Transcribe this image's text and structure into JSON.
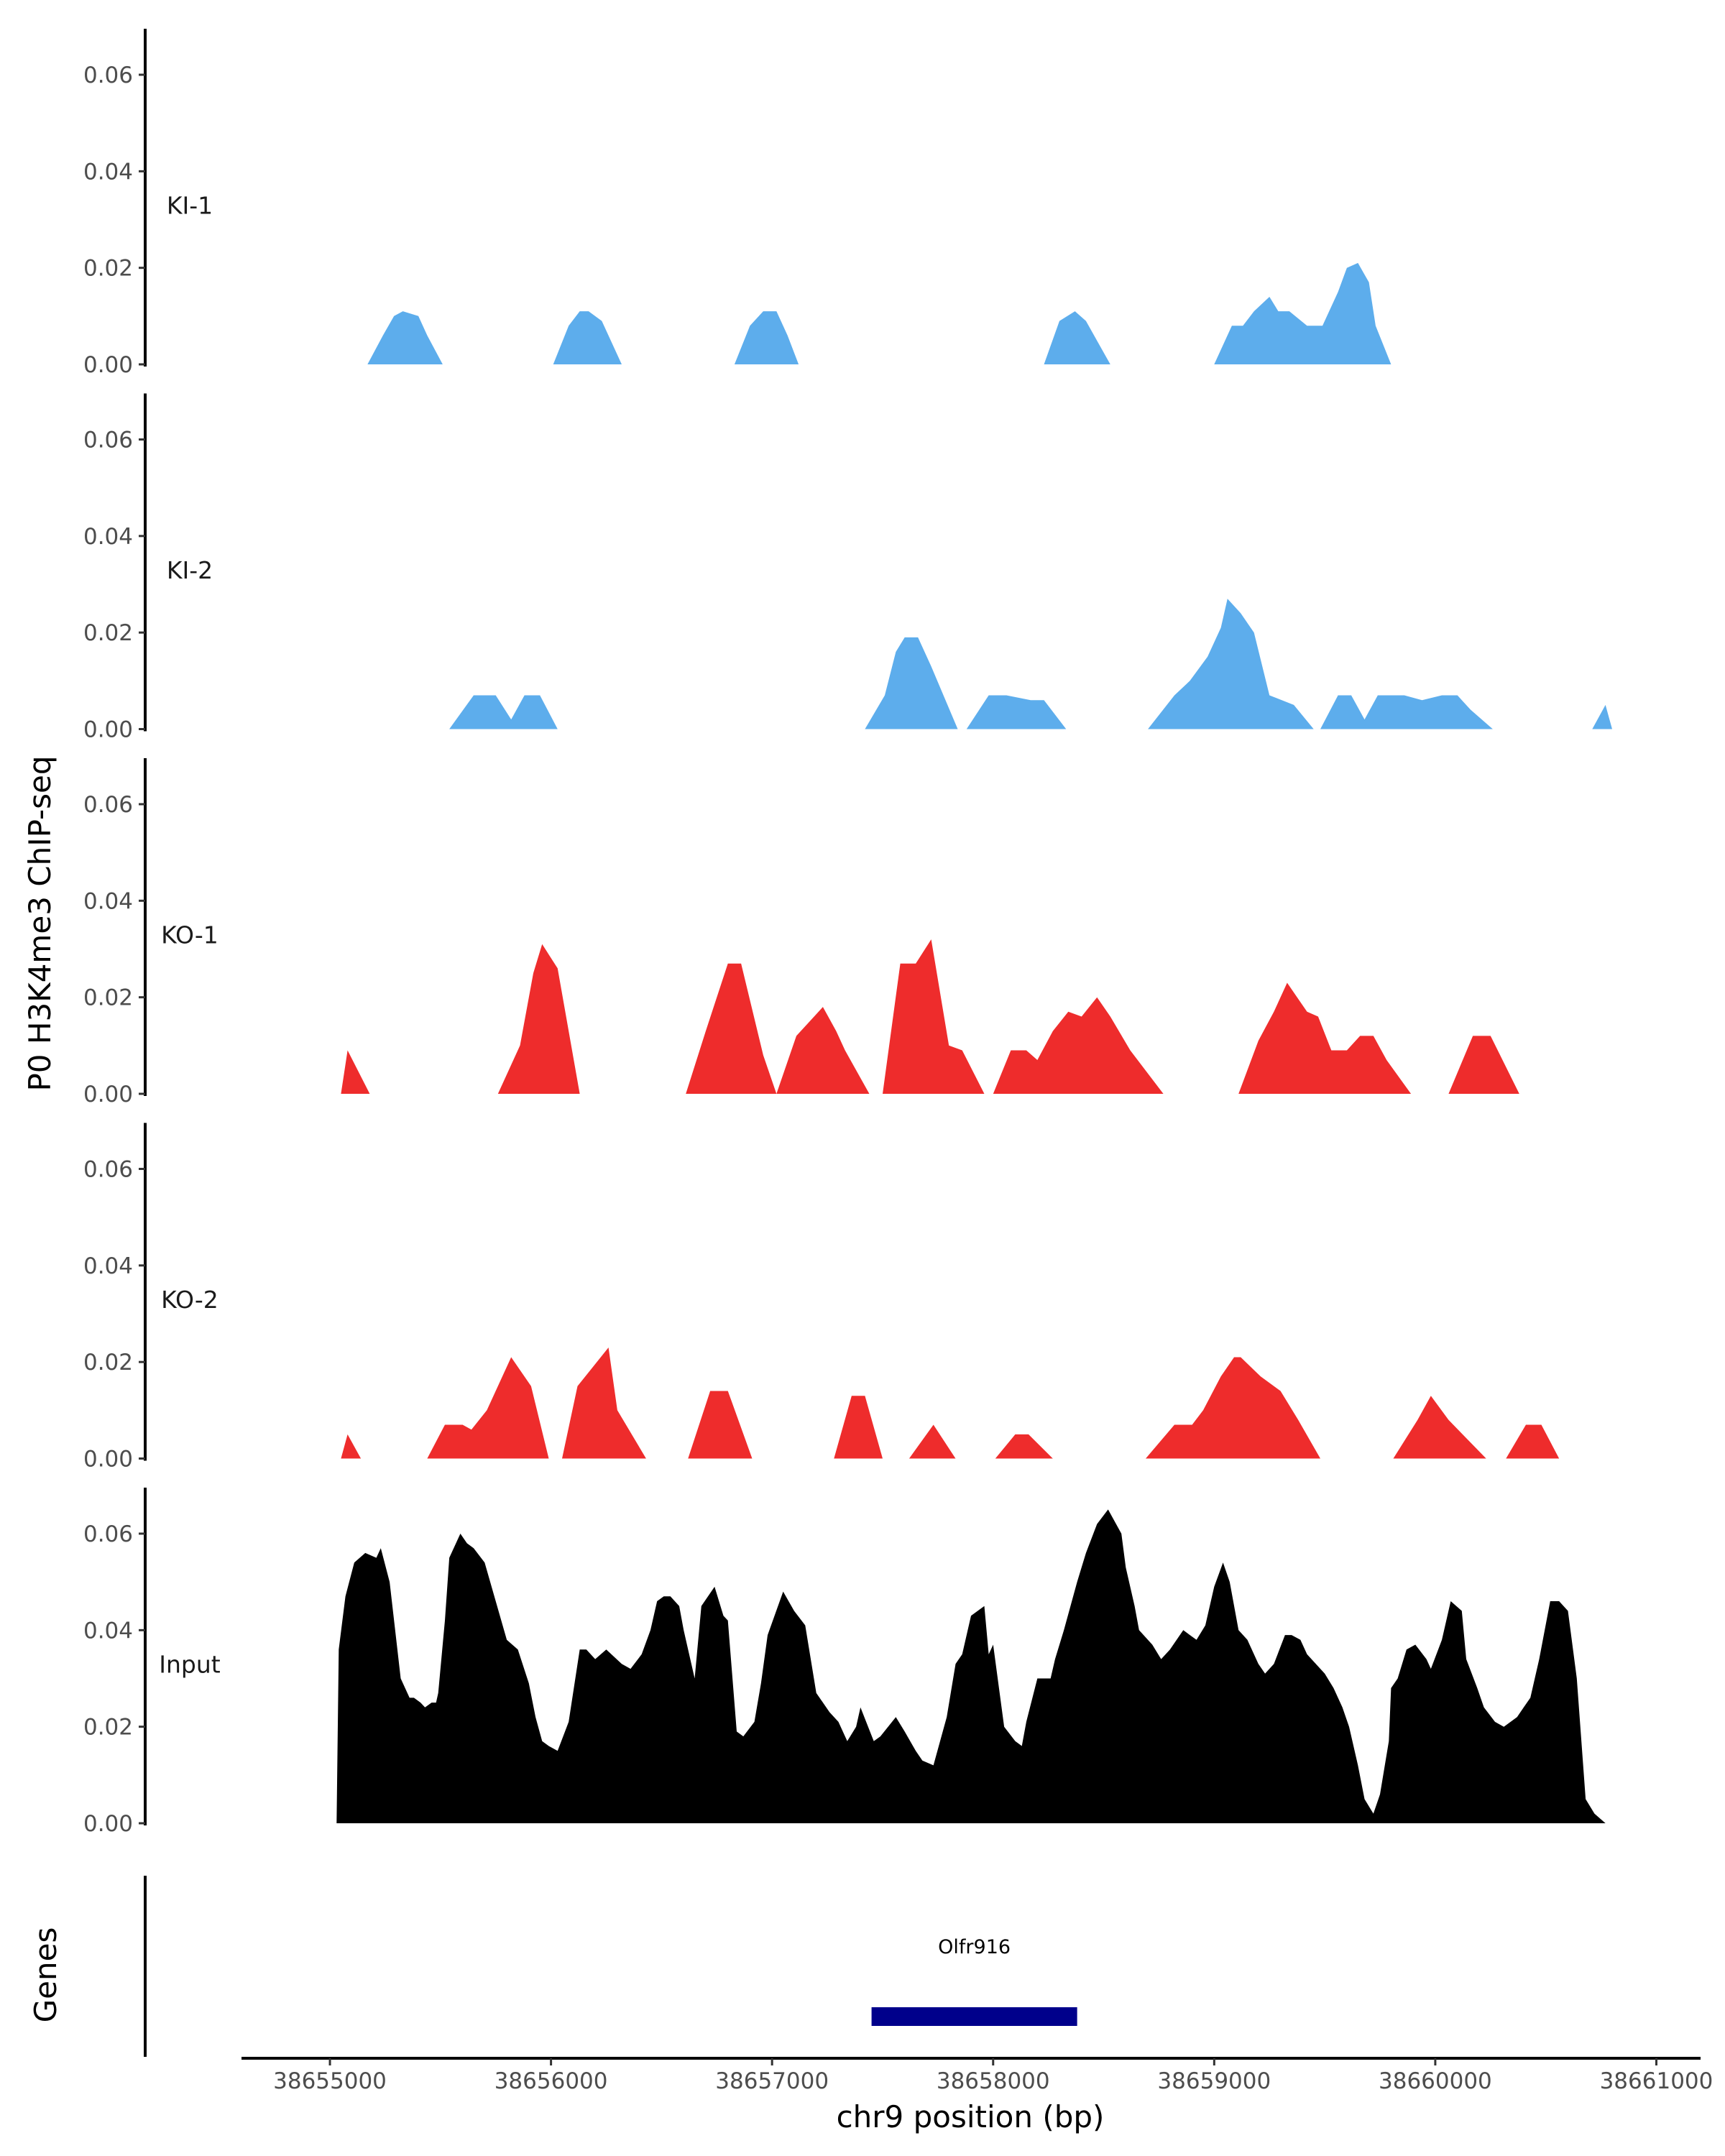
{
  "chart_data": {
    "type": "area",
    "ylabel": "P0 H3K4me3 ChIP-seq",
    "xlabel": "chr9 position (bp)",
    "genes_label": "Genes",
    "xlim": [
      38654600,
      38661200
    ],
    "ylim": [
      0,
      0.068
    ],
    "x_ticks": [
      38655000,
      38656000,
      38657000,
      38658000,
      38659000,
      38660000,
      38661000
    ],
    "x_tick_labels": [
      "38655000",
      "38656000",
      "38657000",
      "38658000",
      "38659000",
      "38660000",
      "38661000"
    ],
    "y_ticks": [
      0,
      0.02,
      0.04,
      0.06
    ],
    "y_tick_labels": [
      "0.00",
      "0.02",
      "0.04",
      "0.06"
    ],
    "colors": {
      "KI": "#5DADEC",
      "KO": "#EE2C2C",
      "Input": "#000000",
      "gene": "#00008B"
    },
    "tracks": [
      {
        "name": "KI-1",
        "color": "#5DADEC",
        "x": [
          38655170,
          38655240,
          38655290,
          38655330,
          38655400,
          38655440,
          38655510,
          38656010,
          38656080,
          38656130,
          38656170,
          38656230,
          38656320,
          38656830,
          38656900,
          38656960,
          38657020,
          38657070,
          38657120,
          38658230,
          38658300,
          38658370,
          38658420,
          38658530,
          38659000,
          38659080,
          38659130,
          38659180,
          38659250,
          38659290,
          38659340,
          38659420,
          38659490,
          38659560,
          38659600,
          38659650,
          38659700,
          38659730,
          38659800
        ],
        "y": [
          0,
          0.006,
          0.01,
          0.011,
          0.01,
          0.006,
          0,
          0,
          0.008,
          0.011,
          0.011,
          0.009,
          0,
          0,
          0.008,
          0.011,
          0.011,
          0.006,
          0,
          0,
          0.009,
          0.011,
          0.009,
          0,
          0,
          0.008,
          0.008,
          0.011,
          0.014,
          0.011,
          0.011,
          0.008,
          0.008,
          0.015,
          0.02,
          0.021,
          0.017,
          0.008,
          0
        ]
      },
      {
        "name": "KI-2",
        "color": "#5DADEC",
        "x": [
          38655540,
          38655650,
          38655750,
          38655820,
          38655880,
          38655950,
          38656030,
          38656130,
          38657420,
          38657510,
          38657560,
          38657600,
          38657660,
          38657720,
          38657840,
          38657880,
          38657980,
          38658060,
          38658170,
          38658230,
          38658330,
          38658700,
          38658820,
          38658890,
          38658970,
          38659030,
          38659060,
          38659120,
          38659180,
          38659250,
          38659360,
          38659450,
          38659480,
          38659560,
          38659620,
          38659680,
          38659740,
          38659860,
          38659940,
          38660030,
          38660100,
          38660160,
          38660260,
          38660710,
          38660770,
          38660800
        ],
        "y": [
          0,
          0.007,
          0.007,
          0.002,
          0.007,
          0.007,
          0,
          0,
          0,
          0.007,
          0.016,
          0.019,
          0.019,
          0.013,
          0,
          0,
          0.007,
          0.007,
          0.006,
          0.006,
          0,
          0,
          0.007,
          0.01,
          0.015,
          0.021,
          0.027,
          0.024,
          0.02,
          0.007,
          0.005,
          0,
          0,
          0.007,
          0.007,
          0.002,
          0.007,
          0.007,
          0.006,
          0.007,
          0.007,
          0.004,
          0,
          0,
          0.005,
          0
        ]
      },
      {
        "name": "KO-1",
        "color": "#EE2C2C",
        "x": [
          38655050,
          38655080,
          38655180,
          38655760,
          38655860,
          38655920,
          38655960,
          38656030,
          38656130,
          38656610,
          38656700,
          38656800,
          38656860,
          38656960,
          38657020,
          38657110,
          38657170,
          38657230,
          38657290,
          38657330,
          38657440,
          38657500,
          38657580,
          38657650,
          38657720,
          38657800,
          38657860,
          38657960,
          38658000,
          38658080,
          38658150,
          38658200,
          38658270,
          38658340,
          38658400,
          38658470,
          38658530,
          38658620,
          38658770,
          38659110,
          38659200,
          38659270,
          38659330,
          38659420,
          38659470,
          38659530,
          38659600,
          38659660,
          38659720,
          38659780,
          38659890,
          38660060,
          38660170,
          38660250,
          38660380
        ],
        "y": [
          0,
          0.009,
          0,
          0,
          0.01,
          0.025,
          0.031,
          0.026,
          0,
          0,
          0.013,
          0.027,
          0.027,
          0.008,
          0,
          0.012,
          0.015,
          0.018,
          0.013,
          0.009,
          0,
          0,
          0.027,
          0.027,
          0.032,
          0.01,
          0.009,
          0,
          0,
          0.009,
          0.009,
          0.007,
          0.013,
          0.017,
          0.016,
          0.02,
          0.016,
          0.009,
          0,
          0,
          0.011,
          0.017,
          0.023,
          0.017,
          0.016,
          0.009,
          0.009,
          0.012,
          0.012,
          0.007,
          0,
          0,
          0.012,
          0.012,
          0
        ]
      },
      {
        "name": "KO-2",
        "color": "#EE2C2C",
        "x": [
          38655050,
          38655080,
          38655140,
          38655440,
          38655520,
          38655600,
          38655640,
          38655710,
          38655820,
          38655910,
          38655990,
          38656050,
          38656120,
          38656260,
          38656300,
          38656430,
          38656620,
          38656720,
          38656800,
          38656910,
          38657280,
          38657360,
          38657420,
          38657500,
          38657620,
          38657730,
          38657830,
          38658010,
          38658100,
          38658160,
          38658270,
          38658690,
          38658820,
          38658900,
          38658950,
          38659030,
          38659090,
          38659120,
          38659210,
          38659300,
          38659380,
          38659480,
          38659810,
          38659920,
          38659980,
          38660060,
          38660230,
          38660320,
          38660410,
          38660480,
          38660560
        ],
        "y": [
          0,
          0.005,
          0,
          0,
          0.007,
          0.007,
          0.006,
          0.01,
          0.021,
          0.015,
          0,
          0,
          0.015,
          0.023,
          0.01,
          0,
          0,
          0.014,
          0.014,
          0,
          0,
          0.013,
          0.013,
          0,
          0,
          0.007,
          0,
          0,
          0.005,
          0.005,
          0,
          0,
          0.007,
          0.007,
          0.01,
          0.017,
          0.021,
          0.021,
          0.017,
          0.014,
          0.008,
          0,
          0,
          0.008,
          0.013,
          0.008,
          0,
          0,
          0.007,
          0.007,
          0
        ]
      },
      {
        "name": "Input",
        "color": "#000000",
        "x": [
          38655030,
          38655040,
          38655070,
          38655110,
          38655160,
          38655210,
          38655230,
          38655270,
          38655320,
          38655360,
          38655380,
          38655410,
          38655430,
          38655460,
          38655480,
          38655490,
          38655520,
          38655540,
          38655590,
          38655620,
          38655650,
          38655700,
          38655750,
          38655800,
          38655850,
          38655900,
          38655930,
          38655960,
          38655990,
          38656030,
          38656080,
          38656130,
          38656160,
          38656200,
          38656250,
          38656320,
          38656360,
          38656410,
          38656450,
          38656480,
          38656510,
          38656540,
          38656580,
          38656600,
          38656650,
          38656680,
          38656740,
          38656780,
          38656800,
          38656840,
          38656870,
          38656920,
          38656950,
          38656980,
          38657050,
          38657100,
          38657150,
          38657200,
          38657260,
          38657300,
          38657340,
          38657380,
          38657400,
          38657460,
          38657490,
          38657560,
          38657600,
          38657650,
          38657680,
          38657730,
          38657790,
          38657830,
          38657860,
          38657900,
          38657960,
          38657980,
          38658000,
          38658050,
          38658100,
          38658130,
          38658150,
          38658200,
          38658260,
          38658280,
          38658320,
          38658380,
          38658420,
          38658470,
          38658520,
          38658580,
          38658600,
          38658640,
          38658660,
          38658720,
          38658760,
          38658800,
          38658860,
          38658890,
          38658920,
          38658960,
          38659000,
          38659040,
          38659070,
          38659110,
          38659150,
          38659200,
          38659230,
          38659270,
          38659320,
          38659350,
          38659390,
          38659420,
          38659500,
          38659540,
          38659580,
          38659610,
          38659650,
          38659680,
          38659720,
          38659750,
          38659790,
          38659800,
          38659830,
          38659870,
          38659910,
          38659960,
          38659980,
          38660030,
          38660070,
          38660120,
          38660140,
          38660190,
          38660220,
          38660270,
          38660310,
          38660370,
          38660400,
          38660430,
          38660470,
          38660520,
          38660560,
          38660600,
          38660640,
          38660680,
          38660720,
          38660770
        ],
        "y": [
          0,
          0.036,
          0.047,
          0.054,
          0.056,
          0.055,
          0.057,
          0.05,
          0.03,
          0.026,
          0.026,
          0.025,
          0.024,
          0.025,
          0.025,
          0.027,
          0.042,
          0.055,
          0.06,
          0.058,
          0.057,
          0.054,
          0.046,
          0.038,
          0.036,
          0.029,
          0.022,
          0.017,
          0.016,
          0.015,
          0.021,
          0.036,
          0.036,
          0.034,
          0.036,
          0.033,
          0.032,
          0.035,
          0.04,
          0.046,
          0.047,
          0.047,
          0.045,
          0.04,
          0.03,
          0.045,
          0.049,
          0.043,
          0.042,
          0.019,
          0.018,
          0.021,
          0.029,
          0.039,
          0.048,
          0.044,
          0.041,
          0.027,
          0.023,
          0.021,
          0.017,
          0.02,
          0.024,
          0.017,
          0.018,
          0.022,
          0.019,
          0.015,
          0.013,
          0.012,
          0.022,
          0.033,
          0.035,
          0.043,
          0.045,
          0.035,
          0.037,
          0.02,
          0.017,
          0.016,
          0.021,
          0.03,
          0.03,
          0.034,
          0.04,
          0.05,
          0.056,
          0.062,
          0.065,
          0.06,
          0.053,
          0.045,
          0.04,
          0.037,
          0.034,
          0.036,
          0.04,
          0.039,
          0.038,
          0.041,
          0.049,
          0.054,
          0.05,
          0.04,
          0.038,
          0.033,
          0.031,
          0.033,
          0.039,
          0.039,
          0.038,
          0.035,
          0.031,
          0.028,
          0.024,
          0.02,
          0.012,
          0.005,
          0.002,
          0.006,
          0.017,
          0.028,
          0.03,
          0.036,
          0.037,
          0.034,
          0.032,
          0.038,
          0.046,
          0.044,
          0.034,
          0.028,
          0.024,
          0.021,
          0.02,
          0.022,
          0.024,
          0.026,
          0.034,
          0.046,
          0.046,
          0.044,
          0.03,
          0.005,
          0.002,
          0
        ]
      }
    ],
    "genes": [
      {
        "name": "Olfr916",
        "start": 38657450,
        "end": 38658380
      }
    ]
  }
}
